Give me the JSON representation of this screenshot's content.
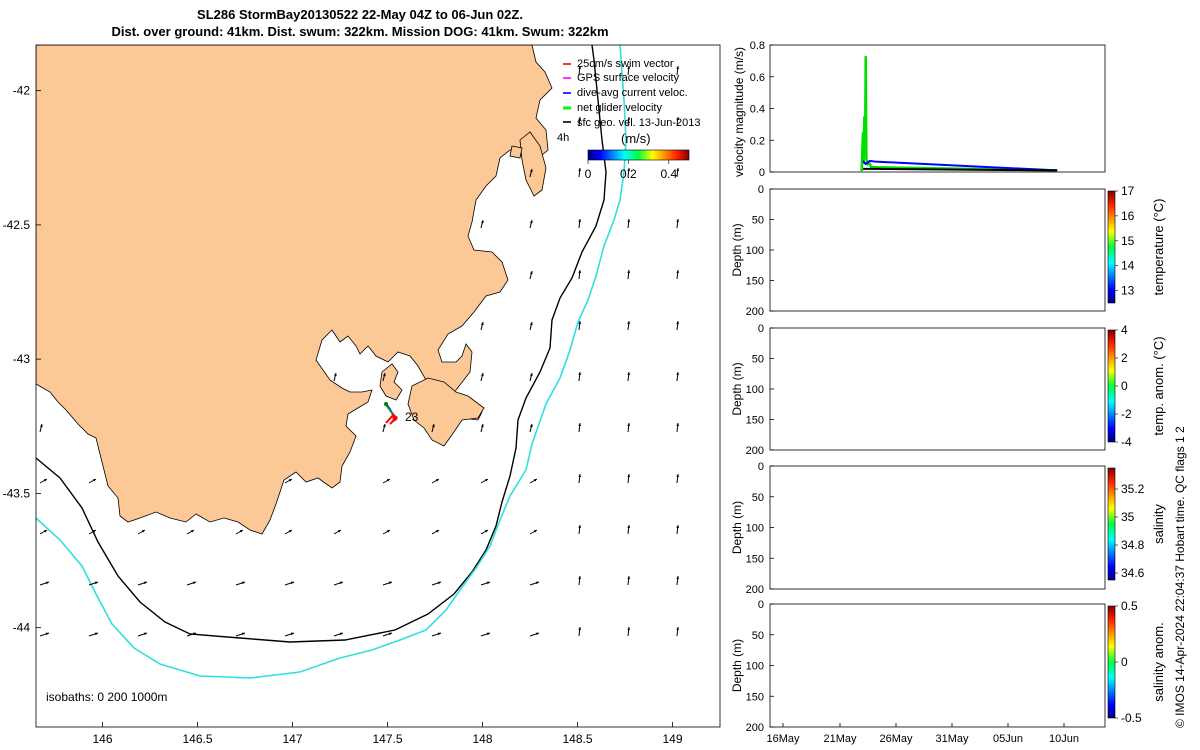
{
  "title": {
    "line1": "SL286 StormBay20130522 22-May 04Z to 06-Jun 02Z.",
    "line2": "Dist. over ground: 41km. Dist. swum: 322km. Mission DOG: 41km. Swum: 322km"
  },
  "chart_data": [
    {
      "type": "map",
      "name": "glider track map",
      "x_ticks": [
        "146",
        "146.5",
        "147",
        "147.5",
        "148",
        "148.5",
        "149"
      ],
      "y_ticks": [
        "-42",
        "-42.5",
        "-43",
        "-43.5",
        "-44"
      ],
      "xlim": [
        145.65,
        149.25
      ],
      "ylim": [
        -44.37,
        -41.83
      ],
      "legend": [
        {
          "label": "25cm/s swim vector",
          "color": "#ff0000"
        },
        {
          "label": "GPS surface velocity",
          "color": "#ff00ff"
        },
        {
          "label": "dive-avg current veloc.",
          "color": "#0000ff"
        },
        {
          "label": "net glider velocity",
          "color": "#00ff00"
        },
        {
          "label": "sfc geo. vel. 13-Jun-2013",
          "color": "#000000"
        }
      ],
      "scale_label": "4h",
      "colorbar": {
        "label": "(m/s)",
        "ticks": [
          "0",
          "0.2",
          "0.4"
        ],
        "range": [
          0,
          0.5
        ]
      },
      "track_label": "23",
      "isobath_label": "isobaths: 0   200  1000m",
      "colors": {
        "land": "#fbc896",
        "isobath_200": "#000000",
        "isobath_1000": "#30dfe0"
      }
    },
    {
      "type": "line",
      "name": "velocity magnitude",
      "ylabel": "velocity magnitude (m/s)",
      "ylim": [
        0,
        0.8
      ],
      "y_ticks": [
        "0",
        "0.2",
        "0.4",
        "0.6",
        "0.8"
      ],
      "xlim": [
        0,
        49
      ],
      "series": [
        {
          "name": "net glider velocity",
          "color": "#00e000",
          "x": [
            13.4,
            13.6,
            13.7,
            13.8,
            13.9,
            14.0,
            14.1,
            14.3,
            14.5,
            14.8,
            15.2,
            42.0
          ],
          "y": [
            0.0,
            0.25,
            0.05,
            0.35,
            0.1,
            0.73,
            0.08,
            0.05,
            0.06,
            0.03,
            0.03,
            0.01
          ]
        },
        {
          "name": "dive-avg current veloc.",
          "color": "#0000ff",
          "x": [
            13.6,
            14.0,
            14.3,
            14.6,
            15.5,
            42.0
          ],
          "y": [
            0.07,
            0.05,
            0.06,
            0.07,
            0.065,
            0.01
          ]
        },
        {
          "name": "sfc geo. vel.",
          "color": "#000000",
          "x": [
            13.6,
            15.0,
            42.0
          ],
          "y": [
            0.02,
            0.02,
            0.01
          ]
        }
      ]
    },
    {
      "type": "heatmap",
      "name": "temperature",
      "ylabel": "Depth (m)",
      "y_ticks": [
        "0",
        "50",
        "100",
        "150",
        "200"
      ],
      "colorbar_label": "temperature (°C)",
      "colorbar_ticks": [
        "17",
        "16",
        "15",
        "14",
        "13"
      ]
    },
    {
      "type": "heatmap",
      "name": "temperature anomaly",
      "ylabel": "Depth (m)",
      "y_ticks": [
        "0",
        "50",
        "100",
        "150",
        "200"
      ],
      "colorbar_label": "temp. anom. (°C)",
      "colorbar_ticks": [
        "4",
        "2",
        "0",
        "-2",
        "-4"
      ]
    },
    {
      "type": "heatmap",
      "name": "salinity",
      "ylabel": "Depth (m)",
      "y_ticks": [
        "0",
        "50",
        "100",
        "150",
        "200"
      ],
      "colorbar_label": "salinity",
      "colorbar_ticks": [
        "35.2",
        "35",
        "34.8",
        "34.6"
      ]
    },
    {
      "type": "heatmap",
      "name": "salinity anomaly",
      "ylabel": "Depth (m)",
      "y_ticks": [
        "0",
        "50",
        "100",
        "150",
        "200"
      ],
      "colorbar_label": "salinity anom.",
      "colorbar_ticks": [
        "0.5",
        "0",
        "-0.5"
      ],
      "x_ticks": [
        "16May",
        "21May",
        "26May",
        "31May",
        "05Jun",
        "10Jun"
      ]
    }
  ],
  "footer_note": "© IMOS 14-Apr-2024 22:04:37 Hobart time. QC flags 1  2"
}
